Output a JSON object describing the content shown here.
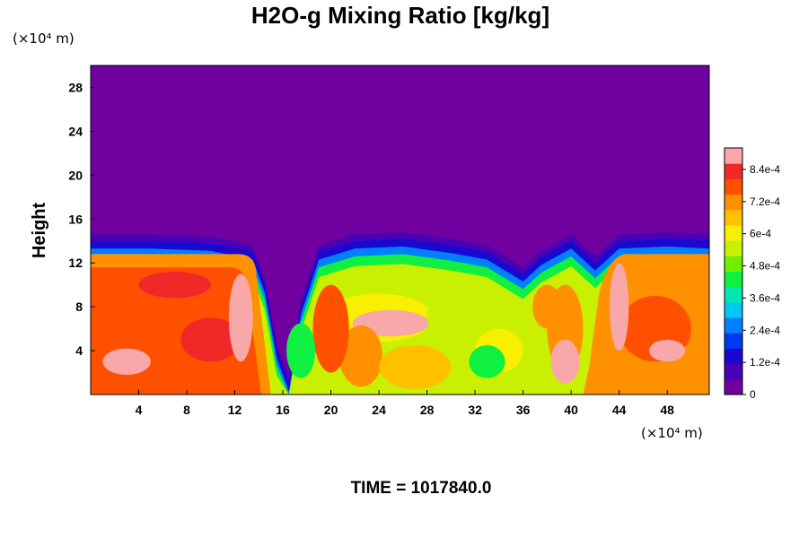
{
  "chart_data": {
    "type": "heatmap",
    "title": "H2O-g Mixing Ratio [kg/kg]",
    "ylabel": "Height",
    "xlabel": "",
    "x_unit": "(×10⁴ m)",
    "y_unit": "(×10⁴ m)",
    "xlim": [
      0,
      51.5
    ],
    "ylim": [
      0,
      30
    ],
    "x_ticks": [
      "4",
      "8",
      "12",
      "16",
      "20",
      "24",
      "28",
      "32",
      "36",
      "40",
      "44",
      "48"
    ],
    "y_ticks": [
      "4",
      "8",
      "12",
      "16",
      "20",
      "24",
      "28"
    ],
    "colorbar": {
      "min": 0,
      "max": 0.00092,
      "tick_labels": [
        "0",
        "1.2e-4",
        "2.4e-4",
        "3.6e-4",
        "4.8e-4",
        "6e-4",
        "7.2e-4",
        "8.4e-4"
      ],
      "tick_values": [
        0,
        0.00012,
        0.00024,
        0.00036,
        0.00048,
        0.0006,
        0.00072,
        0.00084
      ],
      "colors": [
        "#7000a0",
        "#4a00b4",
        "#1808d0",
        "#0038f0",
        "#0080ff",
        "#00c8f0",
        "#00e8b0",
        "#10f040",
        "#70f000",
        "#c8f000",
        "#f8f000",
        "#ffc000",
        "#ff9000",
        "#ff5000",
        "#f02828",
        "#f8a8a8"
      ]
    },
    "moist_layer_top": [
      [
        0,
        14
      ],
      [
        5,
        14
      ],
      [
        10,
        13.8
      ],
      [
        13.5,
        13
      ],
      [
        14.5,
        10
      ],
      [
        15.5,
        4
      ],
      [
        16.5,
        1
      ],
      [
        17.5,
        8
      ],
      [
        19,
        13
      ],
      [
        22,
        14
      ],
      [
        26,
        14.2
      ],
      [
        30,
        13.6
      ],
      [
        33,
        13
      ],
      [
        36,
        11
      ],
      [
        37.5,
        12.5
      ],
      [
        40,
        14
      ],
      [
        42,
        12
      ],
      [
        44,
        14
      ],
      [
        48,
        14.2
      ],
      [
        51.5,
        14
      ]
    ],
    "background_value": 0
  },
  "footer": {
    "time_label": "TIME = 1017840.0"
  }
}
